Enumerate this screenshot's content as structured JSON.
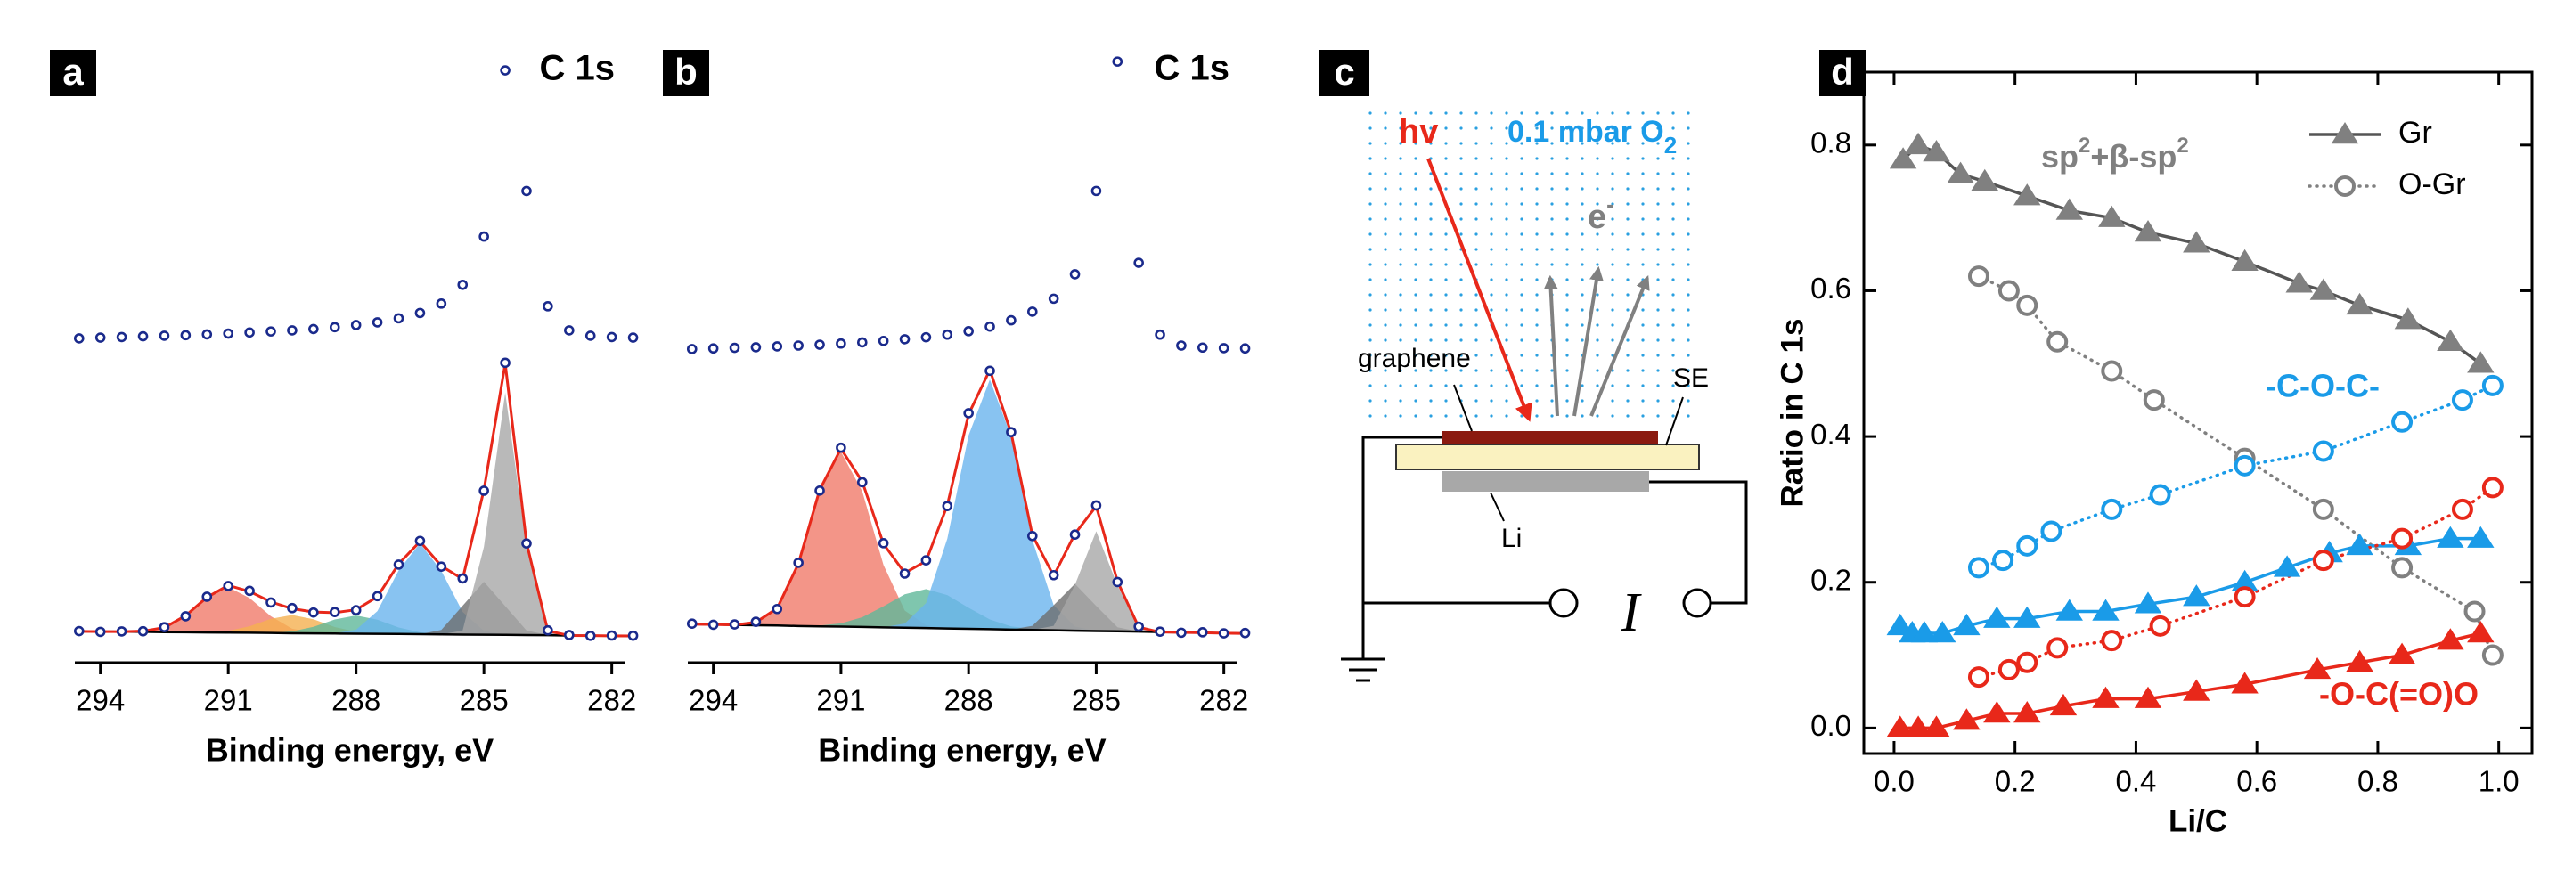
{
  "chart_data": [
    {
      "type": "scatter",
      "panel_label": "a",
      "title": "C 1s",
      "color": "#1a2a8c",
      "x": [
        294.5,
        294,
        293.5,
        293,
        292.5,
        292,
        291.5,
        291,
        290.5,
        290,
        289.5,
        289,
        288.5,
        288,
        287.5,
        287,
        286.5,
        286,
        285.5,
        285,
        284.5,
        284,
        283.5,
        283,
        282.5,
        282,
        281.5
      ],
      "values": [
        0,
        0.3,
        0.5,
        0.8,
        1,
        1.2,
        1.5,
        1.8,
        2.2,
        2.6,
        3,
        3.5,
        4.2,
        5,
        6,
        7.5,
        9.5,
        13,
        20,
        38,
        100,
        55,
        12,
        3,
        1,
        0.5,
        0.3
      ],
      "xlim": [
        294.6,
        281.7
      ],
      "ylim": [
        -5,
        105
      ]
    },
    {
      "type": "spectrum_fit",
      "xlabel": "Binding energy, eV",
      "x": [
        294.5,
        294,
        293.5,
        293,
        292.5,
        292,
        291.5,
        291,
        290.5,
        290,
        289.5,
        289,
        288.5,
        288,
        287.5,
        287,
        286.5,
        286,
        285.5,
        285,
        284.5,
        284,
        283.5,
        283,
        282.5,
        282,
        281.5
      ],
      "xlim": [
        294.6,
        281.7
      ],
      "ylim": [
        -5,
        190
      ],
      "xticks": [
        294,
        291,
        288,
        285,
        282
      ],
      "data_points": {
        "color": "#1a2a8c",
        "values": [
          3.2,
          2.7,
          3,
          3.1,
          5.8,
          13,
          25.9,
          33,
          29.8,
          22.1,
          18.4,
          15.5,
          15.8,
          17,
          26.3,
          47.1,
          62.8,
          45.8,
          38,
          95.9,
          180.4,
          61.1,
          3.7,
          0.6,
          0.1,
          0.3,
          0.2
        ]
      },
      "fit": {
        "color": "#e8281a",
        "values": [
          3,
          2.9,
          2.8,
          3.2,
          5.5,
          13.4,
          25.5,
          33.4,
          29.4,
          22.5,
          18,
          15.8,
          15.4,
          17.3,
          25.9,
          47.6,
          62.4,
          46.2,
          37.6,
          96.4,
          179.9,
          61.6,
          3.3,
          0.3,
          0.2,
          0.1,
          0
        ]
      },
      "background": {
        "color": "#000000",
        "values": [
          3,
          2.9,
          2.8,
          2.7,
          2.5,
          2.4,
          2.3,
          2.2,
          2.1,
          2,
          1.8,
          1.7,
          1.6,
          1.5,
          1.4,
          1.3,
          1.2,
          1,
          0.9,
          0.8,
          0.7,
          0.6,
          0.5,
          0.3,
          0.2,
          0.1,
          0
        ]
      },
      "components": [
        {
          "color": "#f07a6a",
          "values": [
            0,
            0,
            0,
            0.5,
            3,
            11,
            23,
            30,
            23,
            11,
            3,
            0.5,
            0,
            0,
            0,
            0,
            0,
            0,
            0,
            0,
            0,
            0,
            0,
            0,
            0,
            0,
            0
          ]
        },
        {
          "color": "#f5b050",
          "values": [
            0,
            0,
            0,
            0,
            0,
            0,
            0.2,
            1.2,
            4.3,
            9.3,
            12,
            9.3,
            4.3,
            1.2,
            0.2,
            0,
            0,
            0,
            0,
            0,
            0,
            0,
            0,
            0,
            0,
            0,
            0
          ]
        },
        {
          "color": "#5fb89a",
          "values": [
            0,
            0,
            0,
            0,
            0,
            0,
            0,
            0,
            0,
            0.2,
            1.2,
            4.3,
            9.3,
            12,
            9.3,
            4.3,
            1.2,
            0.2,
            0,
            0,
            0,
            0,
            0,
            0,
            0,
            0,
            0
          ]
        },
        {
          "color": "#6ab4ee",
          "values": [
            0,
            0,
            0,
            0,
            0,
            0,
            0,
            0,
            0,
            0,
            0,
            0,
            0.2,
            2.6,
            15,
            42,
            60,
            42,
            15,
            2.6,
            0.2,
            0,
            0,
            0,
            0,
            0,
            0
          ]
        },
        {
          "color": "#6e6e6e",
          "values": [
            0,
            0,
            0,
            0,
            0,
            0,
            0,
            0,
            0,
            0,
            0,
            0,
            0,
            0,
            0,
            0,
            0,
            3,
            19,
            35,
            19,
            3,
            0.1,
            0,
            0,
            0,
            0
          ]
        },
        {
          "color": "#a8a8a8",
          "values": [
            0,
            0,
            0,
            0,
            0,
            0,
            0,
            0,
            0,
            0,
            0,
            0,
            0,
            0,
            0,
            0,
            0,
            0,
            2.7,
            58,
            160,
            58,
            2.7,
            0,
            0,
            0,
            0
          ]
        }
      ]
    },
    {
      "type": "scatter",
      "panel_label": "b",
      "title": "C 1s",
      "color": "#1a2a8c",
      "x": [
        294.5,
        294,
        293.5,
        293,
        292.5,
        292,
        291.5,
        291,
        290.5,
        290,
        289.5,
        289,
        288.5,
        288,
        287.5,
        287,
        286.5,
        286,
        285.5,
        285,
        284.5,
        284,
        283.5,
        283,
        282.5,
        282,
        281.5
      ],
      "values": [
        0,
        0.2,
        0.4,
        0.6,
        0.9,
        1.2,
        1.5,
        1.9,
        2.3,
        2.8,
        3.4,
        4.1,
        5,
        6.2,
        7.8,
        10,
        13,
        17.5,
        26,
        55,
        100,
        30,
        5,
        1.2,
        0.5,
        0.3,
        0.2
      ],
      "xlim": [
        294.6,
        281.7
      ],
      "ylim": [
        -5,
        105
      ]
    },
    {
      "type": "spectrum_fit",
      "xlabel": "Binding energy, eV",
      "x": [
        294.5,
        294,
        293.5,
        293,
        292.5,
        292,
        291.5,
        291,
        290.5,
        290,
        289.5,
        289,
        288.5,
        288,
        287.5,
        287,
        286.5,
        286,
        285.5,
        285,
        284.5,
        284,
        283.5,
        283,
        282.5,
        282,
        281.5
      ],
      "xlim": [
        294.6,
        281.7
      ],
      "ylim": [
        -5,
        180
      ],
      "xticks": [
        294,
        291,
        288,
        285,
        282
      ],
      "data_points": {
        "color": "#1a2a8c",
        "values": [
          6.3,
          5.6,
          5.8,
          7.5,
          15.7,
          45.3,
          91.6,
          119.1,
          97,
          57.9,
          38.4,
          46.9,
          81.7,
          141.2,
          168.4,
          129.1,
          62.5,
          37.4,
          63.4,
          82.1,
          33,
          4.4,
          1.2,
          0.5,
          0.8,
          0.1,
          0.3
        ]
      },
      "fit": {
        "color": "#e8281a",
        "values": [
          6,
          5.8,
          5.5,
          7.2,
          16.1,
          44.8,
          92.1,
          118.5,
          97.4,
          57.4,
          38.8,
          46.4,
          82.2,
          140.5,
          169,
          128.6,
          63,
          36.9,
          63.9,
          81.6,
          33.4,
          4,
          0.9,
          0.7,
          0.5,
          0.2,
          0
        ]
      },
      "background": {
        "color": "#000000",
        "values": [
          6,
          5.8,
          5.5,
          5.3,
          5.1,
          4.8,
          4.6,
          4.4,
          4.2,
          3.9,
          3.7,
          3.5,
          3.2,
          3,
          2.8,
          2.5,
          2.3,
          2.1,
          1.8,
          1.6,
          1.4,
          1.2,
          0.9,
          0.7,
          0.5,
          0.2,
          0
        ]
      },
      "components": [
        {
          "color": "#f07a6a",
          "values": [
            0,
            0,
            0,
            1.9,
            11,
            40,
            87,
            112,
            87,
            40,
            11,
            1.9,
            0,
            0,
            0,
            0,
            0,
            0,
            0,
            0,
            0,
            0,
            0,
            0,
            0,
            0,
            0
          ]
        },
        {
          "color": "#5fb89a",
          "values": [
            0,
            0,
            0,
            0,
            0,
            0,
            0.5,
            2.1,
            6.2,
            13.5,
            21.4,
            25,
            21.4,
            13.5,
            6.2,
            2.1,
            0.5,
            0,
            0,
            0,
            0,
            0,
            0,
            0,
            0,
            0,
            0
          ]
        },
        {
          "color": "#6ab4ee",
          "values": [
            0,
            0,
            0,
            0,
            0,
            0,
            0,
            0,
            0,
            0,
            2.7,
            16,
            57.6,
            124,
            160,
            124,
            57.6,
            16,
            2.7,
            0,
            0,
            0,
            0,
            0,
            0,
            0,
            0
          ]
        },
        {
          "color": "#6e6e6e",
          "values": [
            0,
            0,
            0,
            0,
            0,
            0,
            0,
            0,
            0,
            0,
            0,
            0,
            0,
            0,
            0,
            0,
            2.6,
            16,
            30,
            16,
            2.6,
            0,
            0,
            0,
            0,
            0,
            0
          ]
        },
        {
          "color": "#a8a8a8",
          "values": [
            0,
            0,
            0,
            0,
            0,
            0,
            0,
            0,
            0,
            0,
            0,
            0,
            0,
            0,
            0,
            0,
            0,
            2.8,
            29.4,
            64,
            29.4,
            2.8,
            0,
            0,
            0,
            0,
            0
          ]
        }
      ]
    },
    {
      "type": "scatter",
      "panel_label": "d",
      "xlabel": "Li/C",
      "ylabel": "Ratio in C 1s",
      "xlim": [
        -0.05,
        1.055
      ],
      "ylim": [
        -0.035,
        0.9
      ],
      "xticks": [
        {
          "value": 0,
          "label": "0.0"
        },
        {
          "value": 0.2,
          "label": "0.2"
        },
        {
          "value": 0.4,
          "label": "0.4"
        },
        {
          "value": 0.6,
          "label": "0.6"
        },
        {
          "value": 0.8,
          "label": "0.8"
        },
        {
          "value": 1,
          "label": "1.0"
        }
      ],
      "yticks": [
        {
          "value": 0,
          "label": "0.0"
        },
        {
          "value": 0.2,
          "label": "0.2"
        },
        {
          "value": 0.4,
          "label": "0.4"
        },
        {
          "value": 0.6,
          "label": "0.6"
        },
        {
          "value": 0.8,
          "label": "0.8"
        }
      ],
      "legend": "upper right",
      "series": [
        {
          "name": "Gr",
          "color": "#808080",
          "line_color": "#555555",
          "marker": "triangle",
          "line": "solid",
          "x": [
            0.015,
            0.04,
            0.07,
            0.11,
            0.15,
            0.22,
            0.29,
            0.36,
            0.42,
            0.5,
            0.58,
            0.67,
            0.71,
            0.77,
            0.85,
            0.92,
            0.97
          ],
          "values": [
            0.78,
            0.8,
            0.79,
            0.76,
            0.75,
            0.73,
            0.71,
            0.7,
            0.68,
            0.665,
            0.64,
            0.61,
            0.6,
            0.58,
            0.56,
            0.53,
            0.5
          ]
        },
        {
          "name": "O-Gr",
          "color": "#808080",
          "line_color": "#808080",
          "marker": "circle",
          "line": "dotted",
          "x": [
            0.14,
            0.19,
            0.22,
            0.27,
            0.36,
            0.43,
            0.58,
            0.71,
            0.84,
            0.96,
            0.99
          ],
          "values": [
            0.62,
            0.6,
            0.58,
            0.53,
            0.49,
            0.45,
            0.37,
            0.3,
            0.22,
            0.16,
            0.1
          ]
        },
        {
          "color": "#1a9be8",
          "line_color": "#1a9be8",
          "marker": "triangle",
          "line": "solid",
          "x": [
            0.01,
            0.03,
            0.05,
            0.08,
            0.12,
            0.17,
            0.22,
            0.29,
            0.35,
            0.42,
            0.5,
            0.58,
            0.65,
            0.72,
            0.77,
            0.85,
            0.92,
            0.97
          ],
          "values": [
            0.14,
            0.13,
            0.13,
            0.13,
            0.14,
            0.15,
            0.15,
            0.16,
            0.16,
            0.17,
            0.18,
            0.2,
            0.22,
            0.24,
            0.25,
            0.25,
            0.26,
            0.26
          ]
        },
        {
          "color": "#1a9be8",
          "line_color": "#1a9be8",
          "marker": "circle",
          "line": "dotted",
          "x": [
            0.14,
            0.18,
            0.22,
            0.26,
            0.36,
            0.44,
            0.58,
            0.71,
            0.84,
            0.94,
            0.99
          ],
          "values": [
            0.22,
            0.23,
            0.25,
            0.27,
            0.3,
            0.32,
            0.36,
            0.38,
            0.42,
            0.45,
            0.47
          ]
        },
        {
          "color": "#e8281a",
          "line_color": "#e8281a",
          "marker": "triangle",
          "line": "solid",
          "x": [
            0.01,
            0.04,
            0.07,
            0.12,
            0.17,
            0.22,
            0.28,
            0.35,
            0.42,
            0.5,
            0.58,
            0.7,
            0.77,
            0.84,
            0.92,
            0.97
          ],
          "values": [
            0,
            0,
            0,
            0.01,
            0.02,
            0.02,
            0.03,
            0.04,
            0.04,
            0.05,
            0.06,
            0.08,
            0.09,
            0.1,
            0.12,
            0.13
          ]
        },
        {
          "color": "#e8281a",
          "line_color": "#e8281a",
          "marker": "circle",
          "line": "dotted",
          "x": [
            0.14,
            0.19,
            0.22,
            0.27,
            0.36,
            0.44,
            0.58,
            0.71,
            0.84,
            0.94,
            0.99
          ],
          "values": [
            0.07,
            0.08,
            0.09,
            0.11,
            0.12,
            0.14,
            0.18,
            0.23,
            0.26,
            0.3,
            0.33
          ]
        }
      ],
      "annotations": [
        {
          "text": [
            "sp",
            "2",
            "+β-sp",
            "2"
          ],
          "color": "#808080"
        },
        {
          "text": "-C-O-C-",
          "color": "#1a9be8"
        },
        {
          "text": "-O-C(=O)O",
          "color": "#e8281a"
        }
      ]
    }
  ],
  "diagram": {
    "panel_label": "c",
    "photon": "hv",
    "gas": [
      "0.1 mbar O",
      "2"
    ],
    "electron": [
      "e",
      "-"
    ],
    "labels": [
      "graphene",
      "SE",
      "Li"
    ],
    "current": "I"
  }
}
